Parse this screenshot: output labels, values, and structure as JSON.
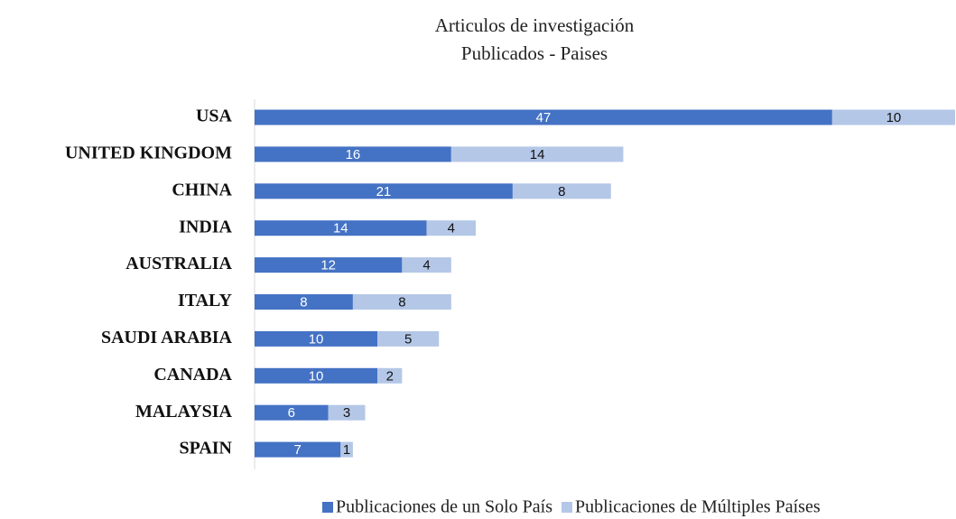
{
  "chart_data": {
    "type": "stacked_bar_horizontal",
    "title": [
      "Articulos de investigación",
      "Publicados - Paises"
    ],
    "categories": [
      "USA",
      "UNITED KINGDOM",
      "CHINA",
      "INDIA",
      "AUSTRALIA",
      "ITALY",
      "SAUDI ARABIA",
      "CANADA",
      "MALAYSIA",
      "SPAIN"
    ],
    "series": [
      {
        "name": "Publicaciones de un Solo País",
        "color": "#4472c4",
        "values": [
          47,
          16,
          21,
          14,
          12,
          8,
          10,
          10,
          6,
          7
        ]
      },
      {
        "name": "Publicaciones de Múltiples Países",
        "color": "#b4c7e7",
        "values": [
          10,
          14,
          8,
          4,
          4,
          8,
          5,
          2,
          3,
          1
        ]
      }
    ],
    "legend": "bottom"
  }
}
